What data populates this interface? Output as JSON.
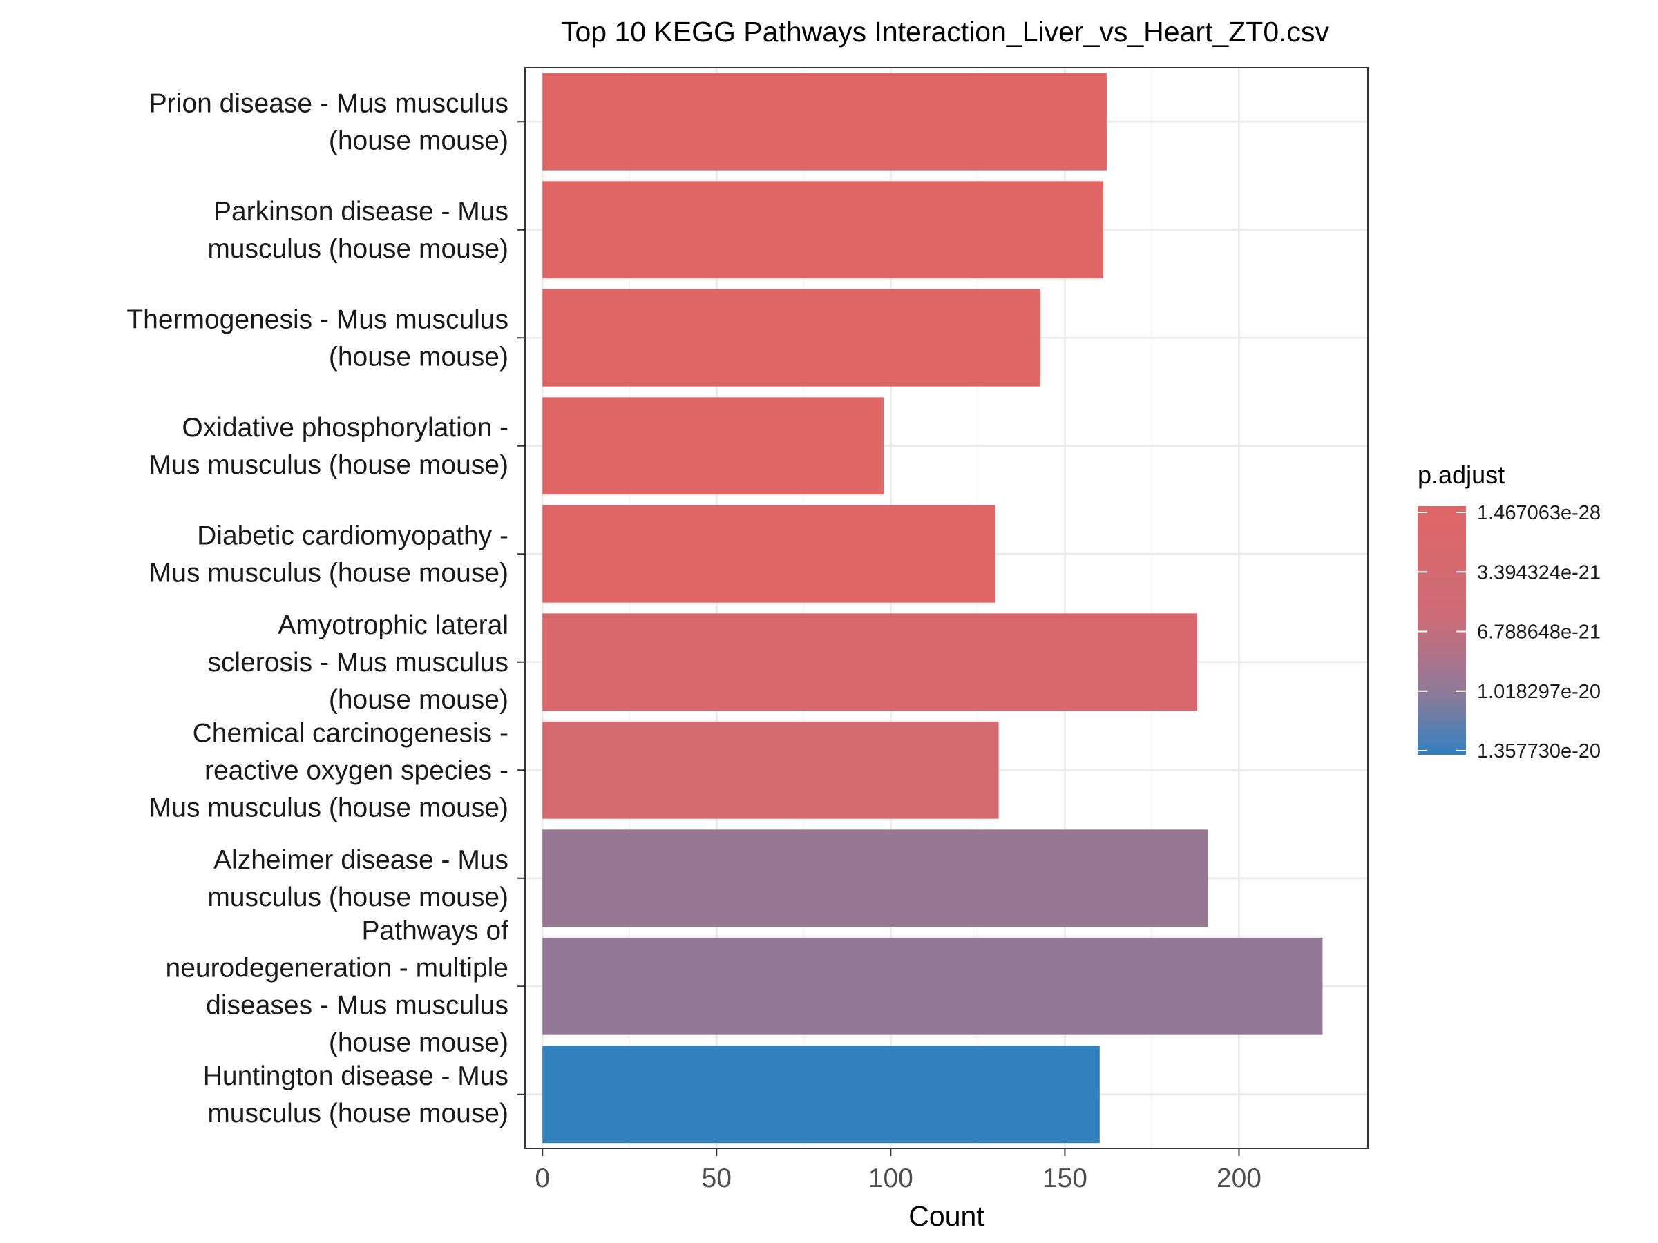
{
  "chart_data": {
    "type": "bar",
    "orientation": "horizontal",
    "title": "Top 10 KEGG Pathways Interaction_Liver_vs_Heart_ZT0.csv",
    "xlabel": "Count",
    "ylabel": "",
    "xlim": [
      -5,
      237
    ],
    "xticks": [
      0,
      50,
      100,
      150,
      200
    ],
    "grid": true,
    "categories": [
      [
        "Prion disease - Mus musculus",
        "(house mouse)"
      ],
      [
        "Parkinson disease - Mus",
        "musculus (house mouse)"
      ],
      [
        "Thermogenesis - Mus musculus",
        "(house mouse)"
      ],
      [
        "Oxidative phosphorylation -",
        "Mus musculus (house mouse)"
      ],
      [
        "Diabetic cardiomyopathy -",
        "Mus musculus (house mouse)"
      ],
      [
        "Amyotrophic lateral",
        "sclerosis - Mus musculus",
        "(house mouse)"
      ],
      [
        "Chemical carcinogenesis -",
        "reactive oxygen species -",
        "Mus musculus (house mouse)"
      ],
      [
        "Alzheimer disease - Mus",
        "musculus (house mouse)"
      ],
      [
        "Pathways of",
        "neurodegeneration - multiple",
        "diseases - Mus musculus",
        "(house mouse)"
      ],
      [
        "Huntington disease - Mus",
        "musculus (house mouse)"
      ]
    ],
    "values": [
      162,
      161,
      143,
      98,
      130,
      188,
      131,
      191,
      224,
      160
    ],
    "colors": [
      "#E06666",
      "#E06666",
      "#E06666",
      "#E06666",
      "#E06666",
      "#D9686D",
      "#D66A71",
      "#977791",
      "#927995",
      "#3380BE"
    ],
    "legend": {
      "title": "p.adjust",
      "position": "right",
      "labels": [
        "1.467063e-28",
        "3.394324e-21",
        "6.788648e-21",
        "1.018297e-20",
        "1.357730e-20"
      ],
      "color_high": "#E06666",
      "color_low": "#3380BE"
    }
  }
}
